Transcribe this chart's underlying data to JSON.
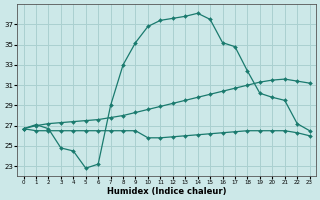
{
  "xlabel": "Humidex (Indice chaleur)",
  "line_color": "#1a7a6e",
  "bg_color": "#cce8e8",
  "grid_color": "#aad0d0",
  "xlim": [
    -0.5,
    23.5
  ],
  "ylim": [
    22.0,
    39.0
  ],
  "xticks": [
    0,
    1,
    2,
    3,
    4,
    5,
    6,
    7,
    8,
    9,
    10,
    11,
    12,
    13,
    14,
    15,
    16,
    17,
    18,
    19,
    20,
    21,
    22,
    23
  ],
  "yticks": [
    23,
    25,
    27,
    29,
    31,
    33,
    35,
    37
  ],
  "line1_x": [
    0,
    1,
    2,
    3,
    4,
    5,
    6,
    7,
    8,
    9,
    10,
    11,
    12,
    13,
    14,
    15,
    16,
    17,
    18,
    19,
    20,
    21,
    22,
    23
  ],
  "line1_y": [
    26.7,
    27.1,
    26.7,
    24.8,
    24.5,
    22.8,
    23.2,
    29.0,
    33.0,
    35.2,
    36.8,
    37.4,
    37.6,
    37.8,
    38.1,
    37.5,
    35.2,
    34.8,
    32.4,
    30.2,
    29.8,
    29.5,
    27.2,
    26.5
  ],
  "line2_x": [
    0,
    1,
    2,
    3,
    4,
    5,
    6,
    7,
    8,
    9,
    10,
    11,
    12,
    13,
    14,
    15,
    16,
    17,
    18,
    19,
    20,
    21,
    22,
    23
  ],
  "line2_y": [
    26.7,
    27.0,
    27.2,
    27.3,
    27.4,
    27.5,
    27.6,
    27.8,
    28.0,
    28.3,
    28.6,
    28.9,
    29.2,
    29.5,
    29.8,
    30.1,
    30.4,
    30.7,
    31.0,
    31.3,
    31.5,
    31.6,
    31.4,
    31.2
  ],
  "line3_x": [
    0,
    1,
    2,
    3,
    4,
    5,
    6,
    7,
    8,
    9,
    10,
    11,
    12,
    13,
    14,
    15,
    16,
    17,
    18,
    19,
    20,
    21,
    22,
    23
  ],
  "line3_y": [
    26.7,
    26.5,
    26.5,
    26.5,
    26.5,
    26.5,
    26.5,
    26.5,
    26.5,
    26.5,
    25.8,
    25.8,
    25.9,
    26.0,
    26.1,
    26.2,
    26.3,
    26.4,
    26.5,
    26.5,
    26.5,
    26.5,
    26.3,
    26.0
  ],
  "marker": "D",
  "markersize": 2.0,
  "linewidth": 0.9
}
